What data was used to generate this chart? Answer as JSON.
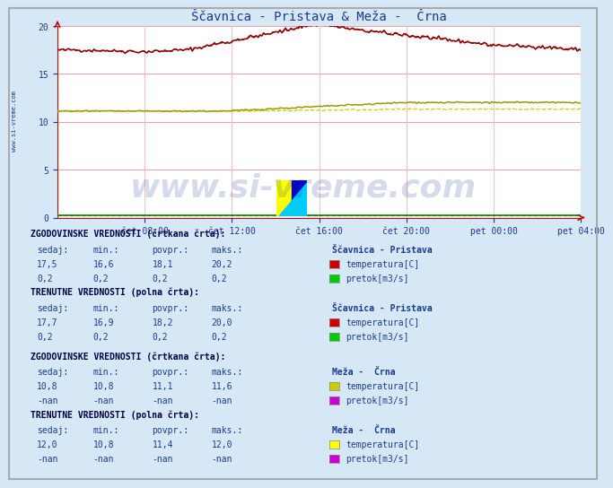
{
  "title": "Ščavnica - Pristava & Meža -  Črna",
  "title_color": "#1a3a8f",
  "bg_color": "#d6e8f5",
  "plot_bg_color": "#ffffff",
  "grid_color_h": "#f0a0a0",
  "grid_color_v": "#f0c0c0",
  "x_tick_labels": [
    "čet 08:00",
    "čet 12:00",
    "čet 16:00",
    "čet 20:00",
    "pet 00:00",
    "pet 04:00"
  ],
  "y_ticks": [
    0,
    5,
    10,
    15,
    20
  ],
  "n_points": 288,
  "color_scav_temp_dashed": "#cc0000",
  "color_scav_temp_solid": "#880000",
  "color_meza_temp_dashed": "#cccc00",
  "color_meza_temp_solid": "#999900",
  "color_scav_pretok_dashed": "#00cc00",
  "color_scav_pretok_solid": "#007700",
  "color_meza_pretok": "#cc00cc",
  "label_color": "#1a3a8f",
  "header_color": "#000044",
  "watermark_color": "#1a3a8f",
  "sections": [
    {
      "title": "ZGODOVINSKE VREDNOSTI (črtkana črta):",
      "station": "Ščavnica - Pristava",
      "rows": [
        {
          "sedaj": "17,5",
          "min": "16,6",
          "povpr": "18,1",
          "maks": "20,2",
          "box_color": "#cc0000",
          "label": "temperatura[C]"
        },
        {
          "sedaj": "0,2",
          "min": "0,2",
          "povpr": "0,2",
          "maks": "0,2",
          "box_color": "#00cc00",
          "label": "pretok[m3/s]"
        }
      ]
    },
    {
      "title": "TRENUTNE VREDNOSTI (polna črta):",
      "station": "Ščavnica - Pristava",
      "rows": [
        {
          "sedaj": "17,7",
          "min": "16,9",
          "povpr": "18,2",
          "maks": "20,0",
          "box_color": "#cc0000",
          "label": "temperatura[C]"
        },
        {
          "sedaj": "0,2",
          "min": "0,2",
          "povpr": "0,2",
          "maks": "0,2",
          "box_color": "#00cc00",
          "label": "pretok[m3/s]"
        }
      ]
    },
    {
      "title": "ZGODOVINSKE VREDNOSTI (črtkana črta):",
      "station": "Meža -  Črna",
      "rows": [
        {
          "sedaj": "10,8",
          "min": "10,8",
          "povpr": "11,1",
          "maks": "11,6",
          "box_color": "#cccc00",
          "label": "temperatura[C]"
        },
        {
          "sedaj": "-nan",
          "min": "-nan",
          "povpr": "-nan",
          "maks": "-nan",
          "box_color": "#cc00cc",
          "label": "pretok[m3/s]"
        }
      ]
    },
    {
      "title": "TRENUTNE VREDNOSTI (polna črta):",
      "station": "Meža -  Črna",
      "rows": [
        {
          "sedaj": "12,0",
          "min": "10,8",
          "povpr": "11,4",
          "maks": "12,0",
          "box_color": "#ffff00",
          "label": "temperatura[C]"
        },
        {
          "sedaj": "-nan",
          "min": "-nan",
          "povpr": "-nan",
          "maks": "-nan",
          "box_color": "#cc00cc",
          "label": "pretok[m3/s]"
        }
      ]
    }
  ]
}
